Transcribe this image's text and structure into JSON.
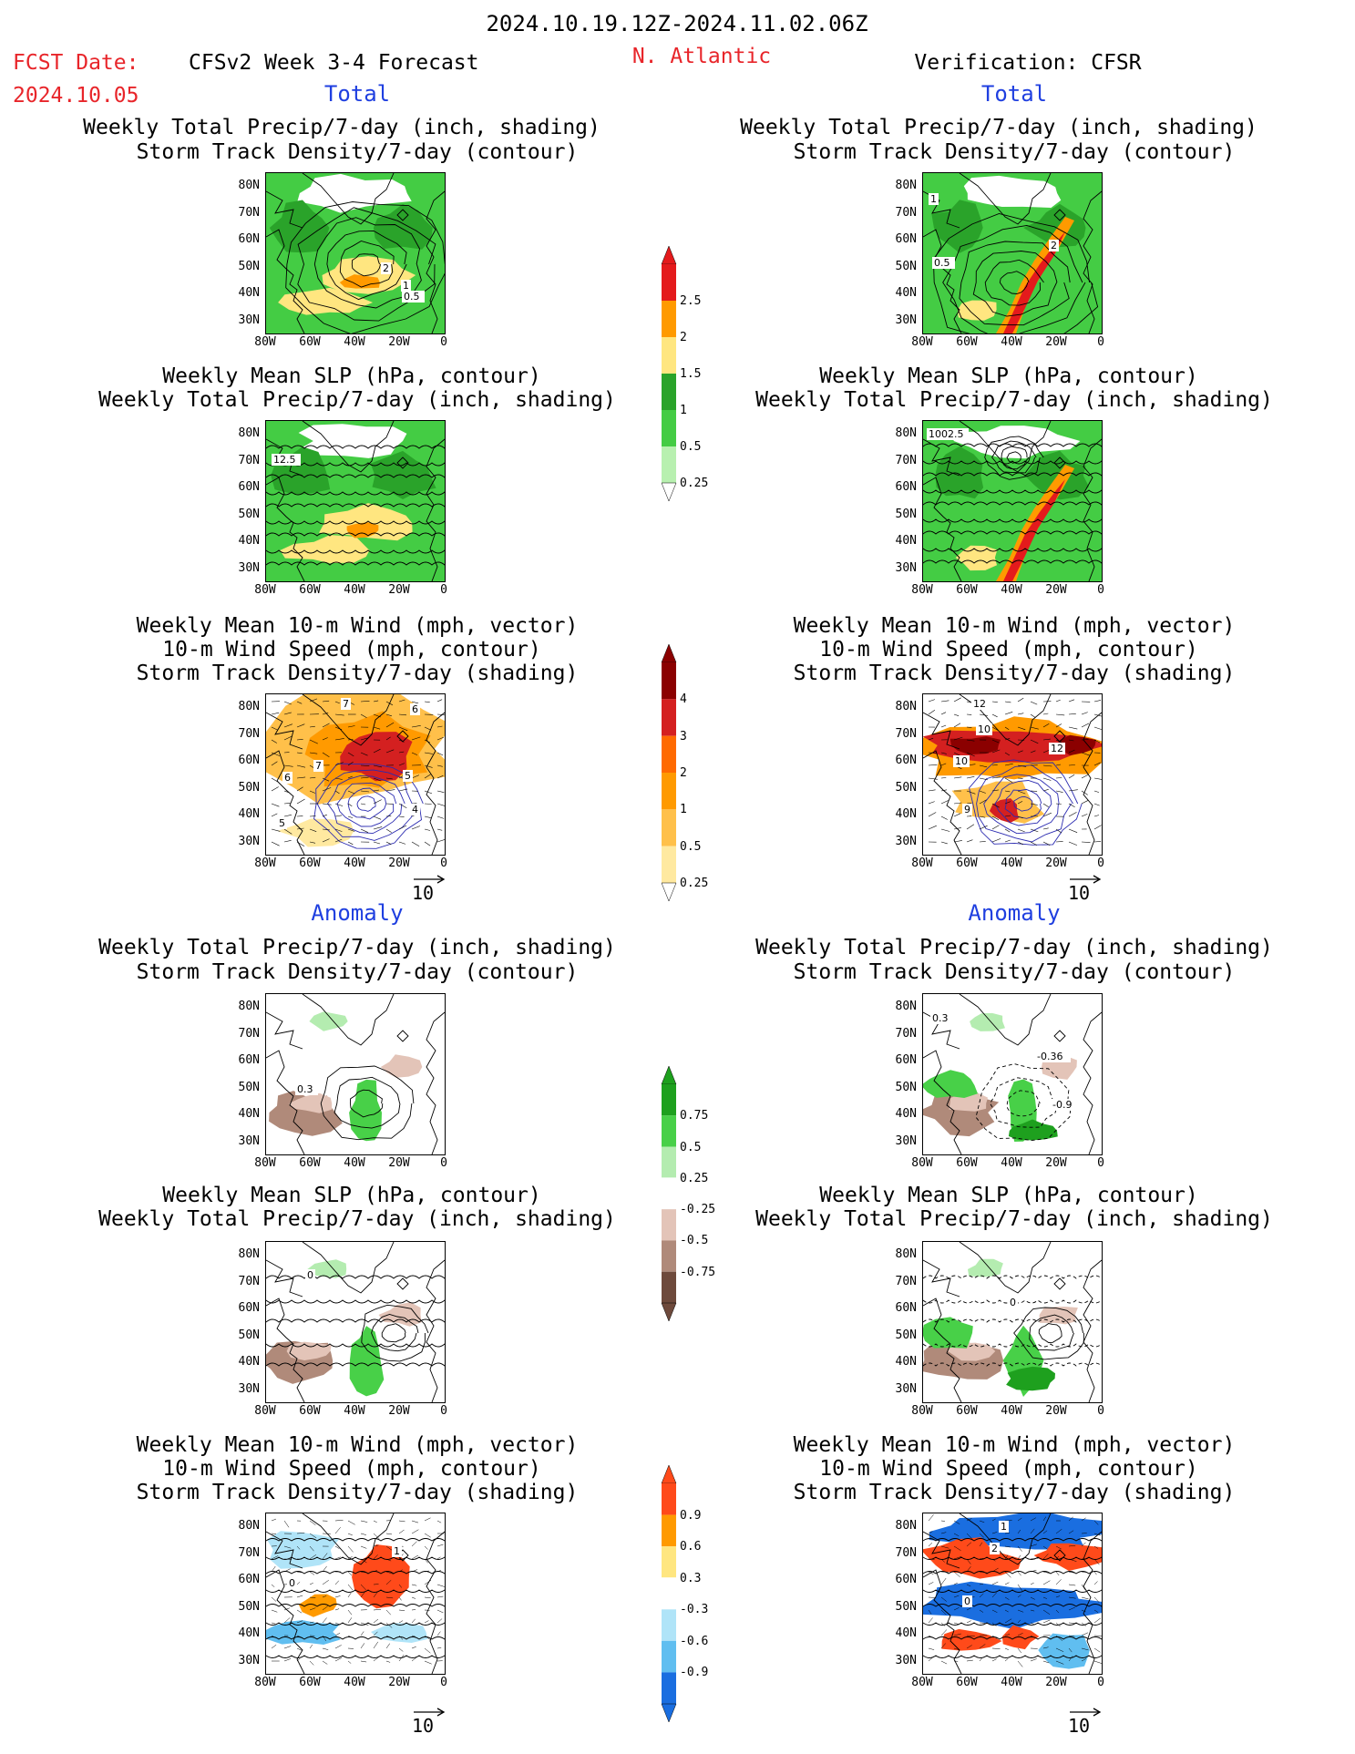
{
  "header": {
    "period": "2024.10.19.12Z-2024.11.02.06Z",
    "fcst_label": "FCST Date:",
    "fcst_date": "2024.10.05",
    "model_title": "CFSv2 Week 3-4 Forecast",
    "region": "N. Atlantic",
    "verification": "Verification: CFSR"
  },
  "sections": {
    "total": "Total",
    "anomaly": "Anomaly"
  },
  "panel_titles": {
    "precip_storm": [
      "Weekly Total Precip/7-day (inch, shading)",
      "Storm Track Density/7-day (contour)"
    ],
    "slp_precip": [
      "Weekly Mean SLP (hPa, contour)",
      "Weekly Total Precip/7-day (inch, shading)"
    ],
    "wind_storm": [
      "Weekly Mean 10-m Wind (mph, vector)",
      "10-m Wind Speed (mph, contour)",
      "Storm Track Density/7-day (shading)"
    ]
  },
  "axes": {
    "lat_ticks": [
      "80N",
      "70N",
      "60N",
      "50N",
      "40N",
      "30N"
    ],
    "lon_ticks": [
      "80W",
      "60W",
      "40W",
      "20W",
      "0"
    ]
  },
  "vector_reference": "10",
  "colorbars": [
    {
      "name": "total-precip",
      "labels": [
        "2.5",
        "2",
        "1.5",
        "1",
        "0.5",
        "0.25"
      ],
      "colors": [
        "#e41a1c",
        "#ff9a00",
        "#ffe680",
        "#2aa32a",
        "#44cc44",
        "#b8f0b0"
      ]
    },
    {
      "name": "total-storm",
      "labels": [
        "4",
        "3",
        "2",
        "1",
        "0.5",
        "0.25"
      ],
      "colors": [
        "#8b0000",
        "#d42020",
        "#ff6a00",
        "#ff9a00",
        "#ffc04a",
        "#ffe9a0"
      ]
    },
    {
      "name": "anom-precip",
      "labels": [
        "0.75",
        "0.5",
        "0.25",
        "-0.25",
        "-0.5",
        "-0.75"
      ],
      "colors": [
        "#1ea01e",
        "#48d048",
        "#b4ecb0",
        "#ffffff",
        "#e3c4b8",
        "#b08a7a",
        "#6e4a3c"
      ]
    },
    {
      "name": "anom-storm",
      "labels": [
        "0.9",
        "0.6",
        "0.3",
        "-0.3",
        "-0.6",
        "-0.9"
      ],
      "colors": [
        "#ff4a1a",
        "#ff9a00",
        "#ffe680",
        "#ffffff",
        "#b0e4f8",
        "#60bef0",
        "#1a6ee0"
      ]
    }
  ],
  "contour_labels": {
    "fc_precip": [
      "2",
      "1",
      "0.5"
    ],
    "vf_precip": [
      "1",
      "2",
      "0.5"
    ],
    "fc_slp": [
      "12.5"
    ],
    "vf_slp": [
      "1002.5"
    ],
    "fc_wind": [
      "7",
      "6",
      "7",
      "6",
      "5",
      "4",
      "5"
    ],
    "vf_wind": [
      "12",
      "10",
      "12",
      "10",
      "9"
    ],
    "fc_anprecip": [
      "0.3"
    ],
    "vf_anprecip": [
      "0.3",
      "-0.36",
      "-0.9"
    ],
    "fc_anslp": [
      "0"
    ],
    "vf_anslp": [
      "0"
    ],
    "fc_anwind": [
      "1",
      "0"
    ],
    "vf_anwind": [
      "1",
      "2",
      "0"
    ]
  }
}
